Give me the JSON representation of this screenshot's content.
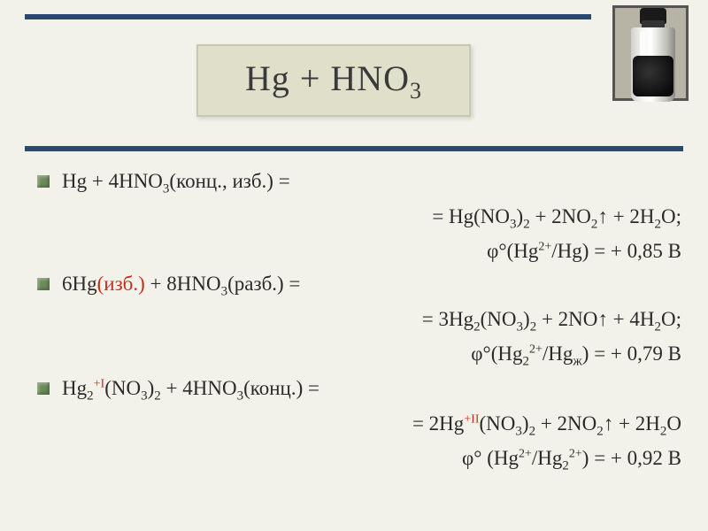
{
  "title": "Hg + HNO₃",
  "title_parts": {
    "main": "Hg + HNO",
    "sub": "3"
  },
  "colors": {
    "background": "#f3f2ea",
    "bar": "#2b4a6b",
    "title_box_bg": "#e0dfca",
    "title_box_border": "#c8c7b0",
    "bullet": "#6b8a5a",
    "text": "#2a2a2a",
    "highlight": "#c03020"
  },
  "fonts": {
    "title_size_pt": 30,
    "body_size_pt": 17,
    "family": "Georgia, Times New Roman, serif"
  },
  "equations": [
    {
      "lhs": {
        "pre": "Hg + 4HNO",
        "sub1": "3",
        "note": "(конц., изб.) ="
      },
      "rhs": {
        "text": "= Hg(NO",
        "s1": "3",
        "text2": ")",
        "s2": "2",
        "text3": " + 2NO",
        "s3": "2",
        "arrow": "↑",
        "text4": " + 2H",
        "s4": "2",
        "text5": "O;"
      },
      "pot": {
        "phi": "φ°(Hg",
        "sup1": "2+",
        "mid": "/Hg) = + 0,85 В"
      }
    },
    {
      "lhs": {
        "pre": "6Hg",
        "note_red": "(изб.)",
        "mid": " + 8HNO",
        "sub1": "3",
        "note": "(разб.) ="
      },
      "rhs": {
        "text": "= 3Hg",
        "s1": "2",
        "text2": "(NO",
        "s2": "3",
        "text3": ")",
        "s3": "2",
        "text4": " + 2NO",
        "arrow": "↑",
        "text5": " + 4H",
        "s4": "2",
        "text6": "O;"
      },
      "pot": {
        "phi": "φ°(Hg",
        "sub1": "2",
        "sup1": "2+",
        "mid": "/Hg",
        "sub2": "ж",
        "tail": ") = + 0,79 В"
      }
    },
    {
      "lhs": {
        "pre": "Hg",
        "sub0": "2",
        "sup_red": "+I",
        "mid": "(NO",
        "sub1": "3",
        "mid2": ")",
        "sub2": "2",
        "mid3": " + 4HNO",
        "sub3": "3",
        "note": "(конц.) ="
      },
      "rhs": {
        "text": "= 2Hg",
        "sup_red": "+II",
        "text2": "(NO",
        "s1": "3",
        "text3": ")",
        "s2": "2",
        "text4": " + 2NO",
        "s3": "2",
        "arrow": "↑",
        "text5": " + 2H",
        "s4": "2",
        "text6": "O"
      },
      "pot": {
        "phi": "φ° (Hg",
        "sup1": "2+",
        "mid": "/Hg",
        "sub1": "2",
        "sup2": "2+",
        "tail": ") = + 0,92 В"
      }
    }
  ]
}
